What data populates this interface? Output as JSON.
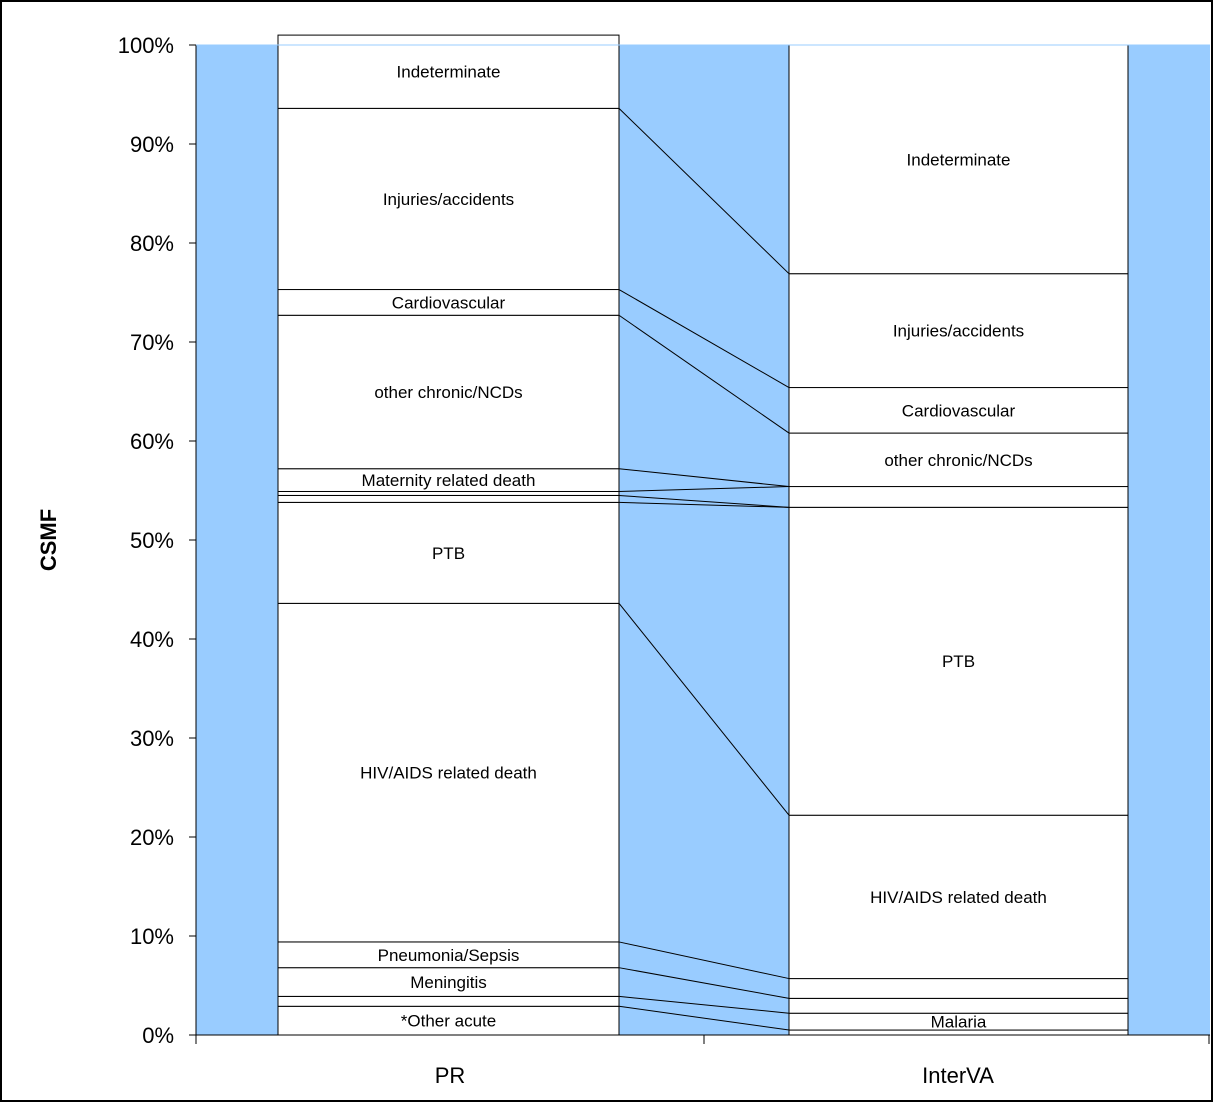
{
  "chart_data": {
    "type": "bar",
    "stacked": true,
    "ylabel": "CSMF",
    "ylim": [
      0,
      100
    ],
    "yticks": [
      "0%",
      "10%",
      "20%",
      "30%",
      "40%",
      "50%",
      "60%",
      "70%",
      "80%",
      "90%",
      "100%"
    ],
    "categories": [
      "PR",
      "InterVA"
    ],
    "series": [
      {
        "name": "*Other acute",
        "values": [
          2.9,
          0.5
        ],
        "labels": [
          "*Other acute",
          ""
        ]
      },
      {
        "name": "",
        "values": [
          1.0,
          1.7
        ],
        "labels": [
          "",
          "Malaria"
        ]
      },
      {
        "name": "Meningitis",
        "values": [
          2.9,
          1.5
        ],
        "labels": [
          "Meningitis",
          ""
        ]
      },
      {
        "name": "Pneumonia/Sepsis",
        "values": [
          2.6,
          2.0
        ],
        "labels": [
          "Pneumonia/Sepsis",
          ""
        ]
      },
      {
        "name": "HIV/AIDS related death",
        "values": [
          34.2,
          16.5
        ],
        "labels": [
          "HIV/AIDS related death",
          "HIV/AIDS related death"
        ]
      },
      {
        "name": "PTB",
        "values": [
          10.2,
          31.1
        ],
        "labels": [
          "PTB",
          "PTB"
        ]
      },
      {
        "name": "",
        "values": [
          0.7,
          0.0
        ],
        "labels": [
          "",
          ""
        ]
      },
      {
        "name": "",
        "values": [
          0.4,
          2.1
        ],
        "labels": [
          "",
          ""
        ]
      },
      {
        "name": "Maternity related death",
        "values": [
          2.3,
          0.0
        ],
        "labels": [
          "Maternity related death",
          ""
        ]
      },
      {
        "name": "other chronic/NCDs",
        "values": [
          15.5,
          5.4
        ],
        "labels": [
          "other chronic/NCDs",
          "other chronic/NCDs"
        ]
      },
      {
        "name": "Cardiovascular",
        "values": [
          2.6,
          4.6
        ],
        "labels": [
          "Cardiovascular",
          "Cardiovascular"
        ]
      },
      {
        "name": "Injuries/accidents",
        "values": [
          18.3,
          11.5
        ],
        "labels": [
          "Injuries/accidents",
          "Injuries/accidents"
        ]
      },
      {
        "name": "Indeterminate",
        "values": [
          7.4,
          23.1
        ],
        "labels": [
          "Indeterminate",
          "Indeterminate"
        ]
      }
    ],
    "colors": {
      "background_band": "#99ccff",
      "segment_fill": "#ffffff",
      "stroke": "#000000"
    },
    "grid": false,
    "legend": "none"
  }
}
